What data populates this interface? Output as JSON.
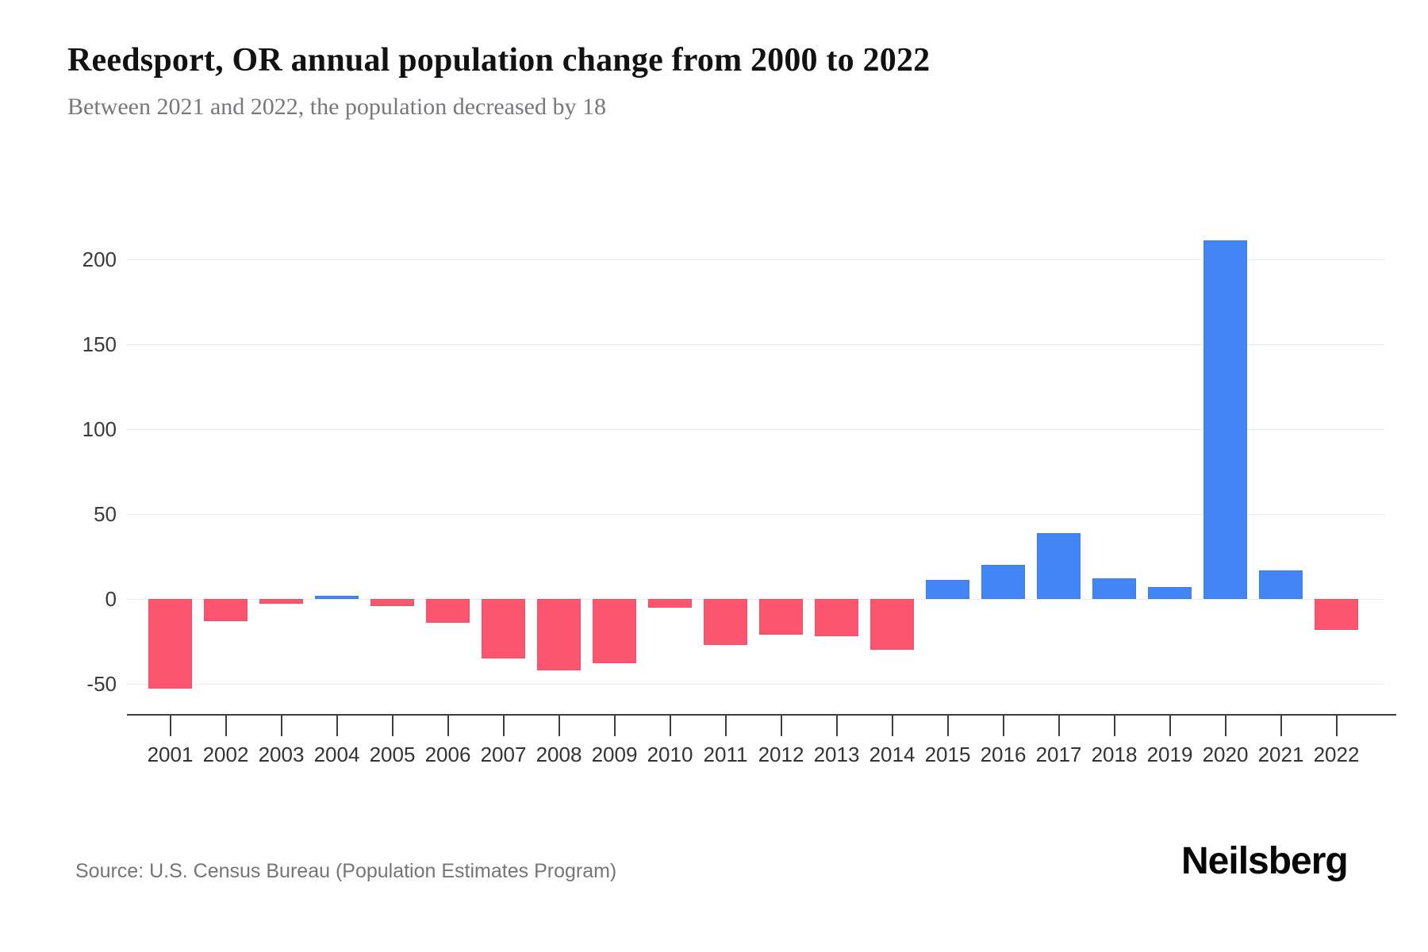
{
  "header": {
    "title": "Reedsport, OR annual population change from 2000 to 2022",
    "subtitle": "Between 2021 and 2022, the population decreased by 18"
  },
  "footer": {
    "source": "Source: U.S. Census Bureau (Population Estimates Program)",
    "brand": "Neilsberg"
  },
  "chart_data": {
    "type": "bar",
    "title": "Reedsport, OR annual population change from 2000 to 2022",
    "xlabel": "",
    "ylabel": "",
    "categories": [
      "2001",
      "2002",
      "2003",
      "2004",
      "2005",
      "2006",
      "2007",
      "2008",
      "2009",
      "2010",
      "2011",
      "2012",
      "2013",
      "2014",
      "2015",
      "2016",
      "2017",
      "2018",
      "2019",
      "2020",
      "2021",
      "2022"
    ],
    "values": [
      -53,
      -13,
      -3,
      2,
      -4,
      -14,
      -35,
      -42,
      -38,
      -5,
      -27,
      -21,
      -22,
      -30,
      11,
      20,
      39,
      12,
      7,
      211,
      17,
      -18
    ],
    "y_ticks": [
      200,
      150,
      100,
      50,
      0,
      -50
    ],
    "ylim": [
      -70,
      230
    ],
    "grid": true,
    "legend": "none",
    "colors": {
      "positive": "#4285F4",
      "negative": "#FB556F"
    }
  }
}
